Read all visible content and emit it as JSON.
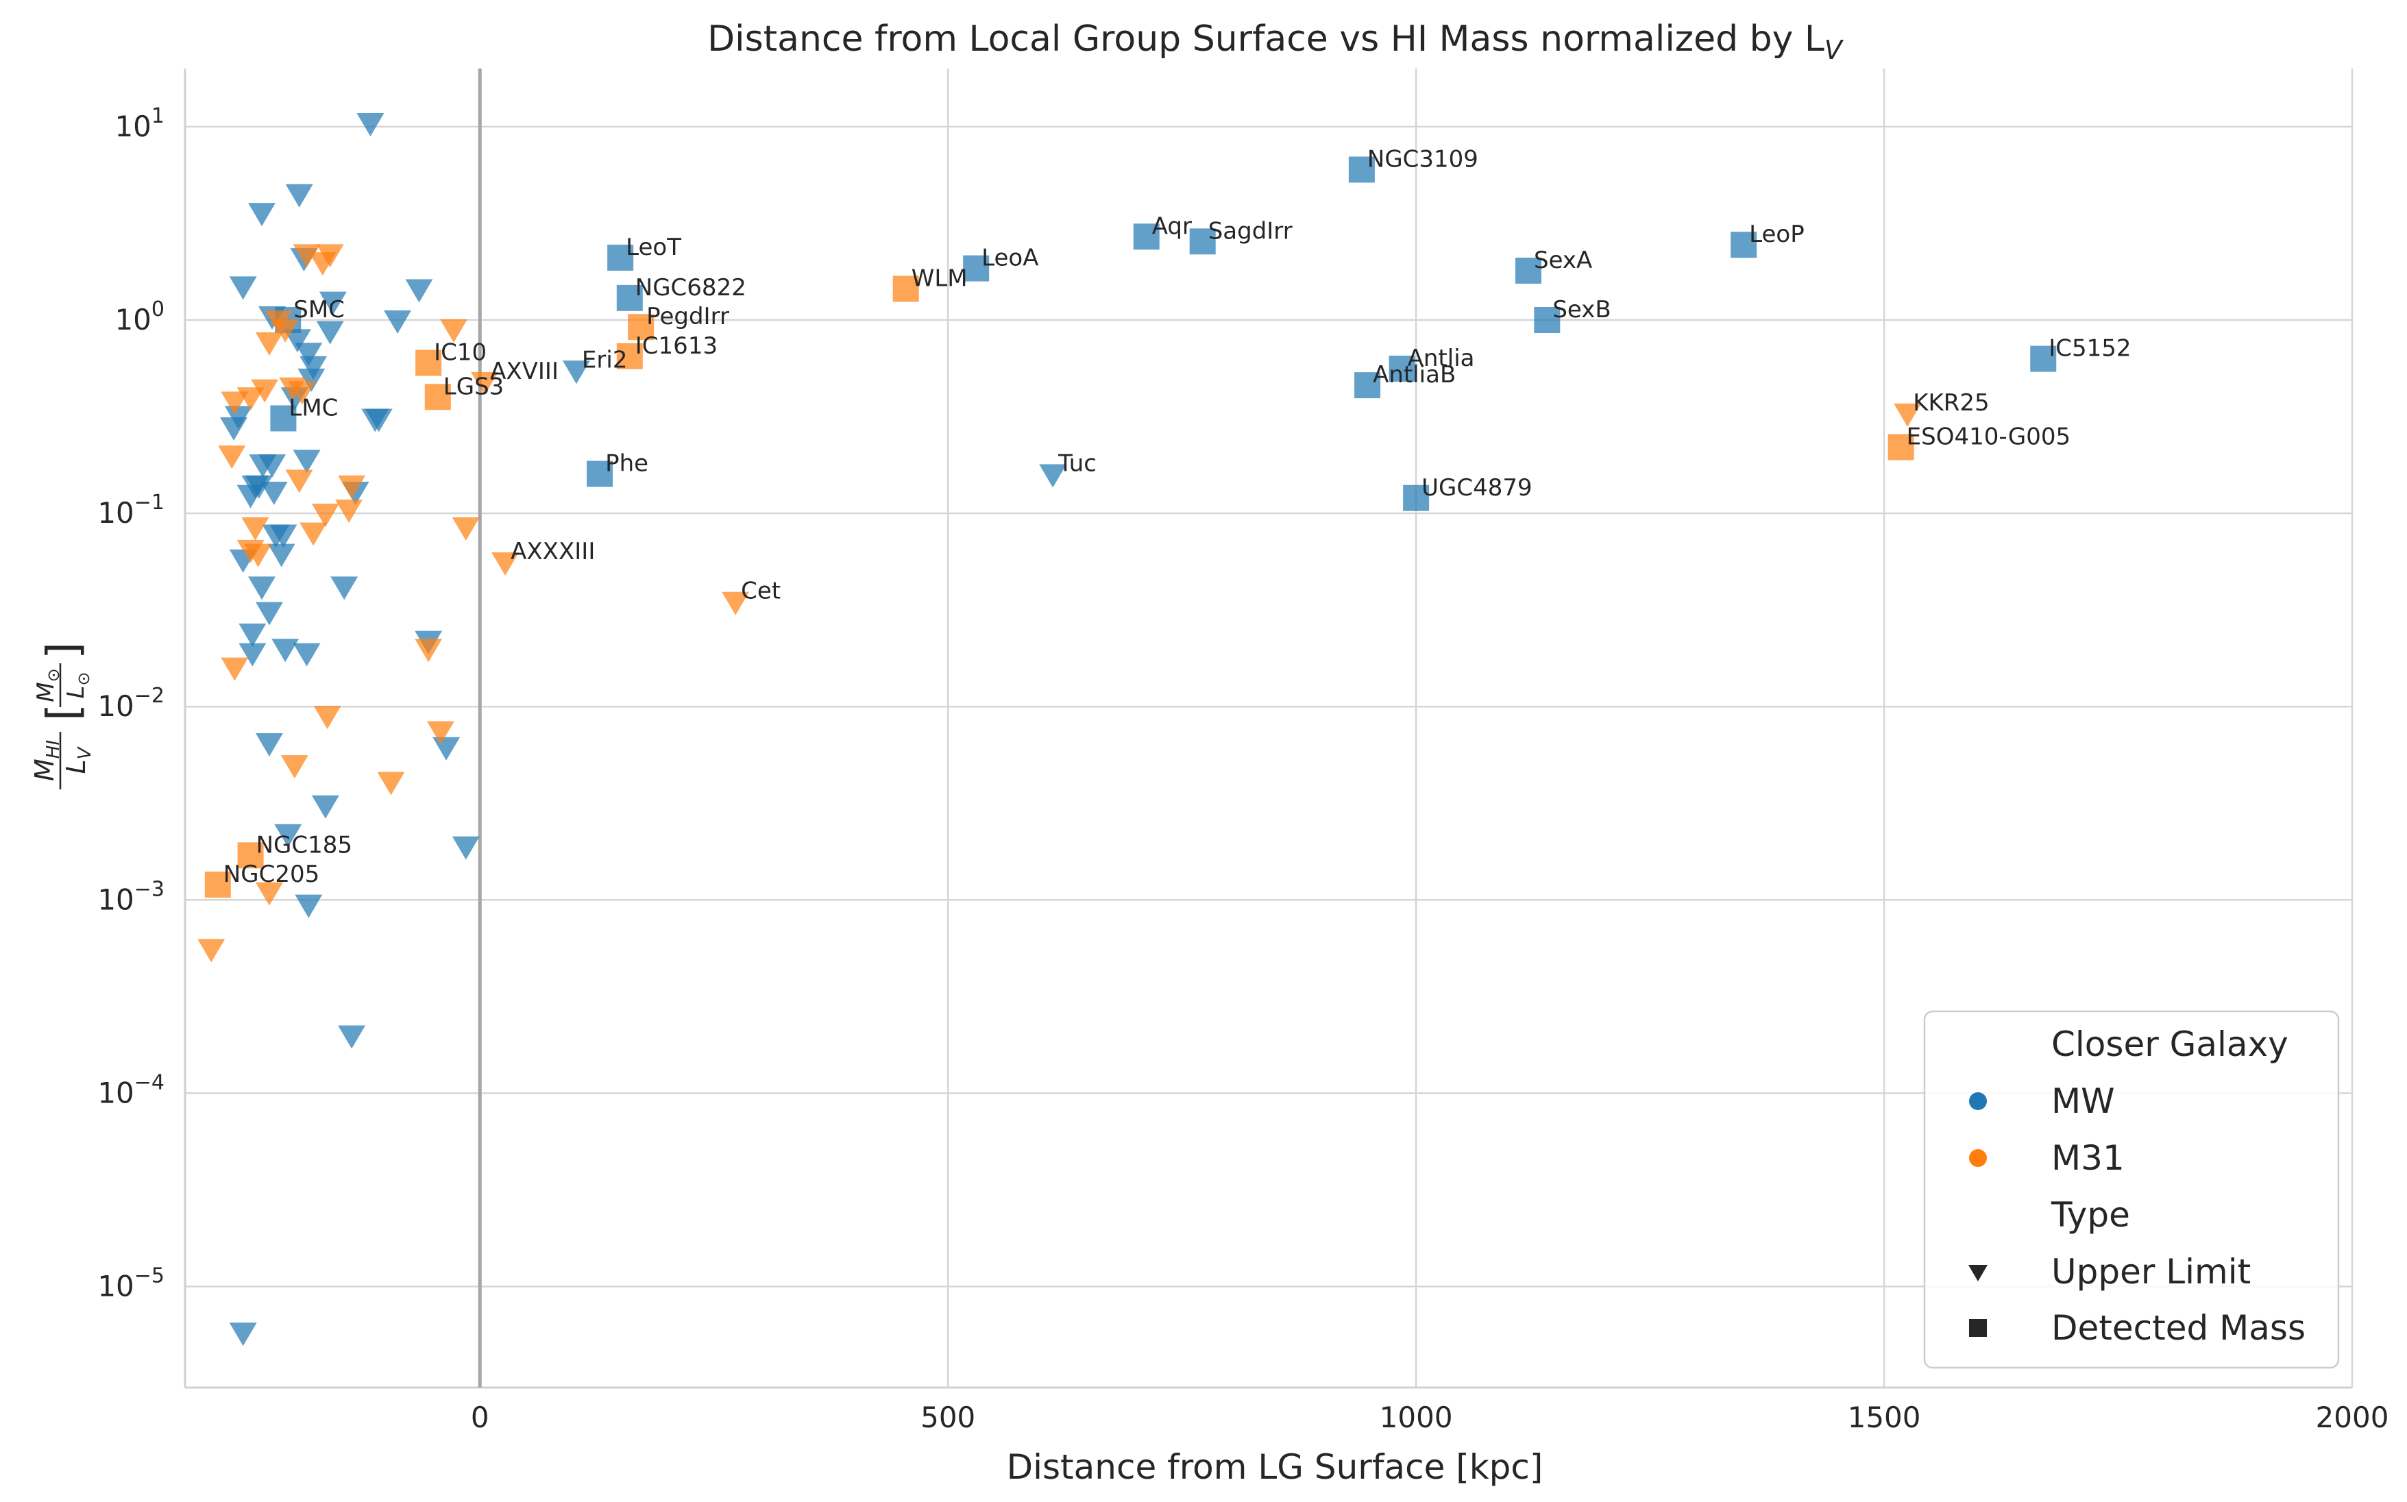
{
  "chart_data": {
    "type": "scatter",
    "title": "Distance from Local Group Surface vs HI Mass normalized by L",
    "title_subscript": "V",
    "xlabel": "Distance from LG Surface [kpc]",
    "ylabel": "M_HI / L_V [M_sun / L_sun]",
    "xlim": [
      -315,
      2000
    ],
    "ylim": [
      3e-06,
      20
    ],
    "yscale": "log",
    "x_ticks": [
      0,
      500,
      1000,
      1500,
      2000
    ],
    "x_tick_labels": [
      "0",
      "500",
      "1000",
      "1500",
      "2000"
    ],
    "y_tick_exponents": [
      1,
      0,
      -1,
      -2,
      -3,
      -4,
      -5
    ],
    "grid": true,
    "reference_line_x": 0,
    "legend_placement": "lower-right",
    "legend": {
      "hue_title": "Closer Galaxy",
      "hue_entries": [
        {
          "label": "MW",
          "color": "#1f77b4"
        },
        {
          "label": "M31",
          "color": "#ff7f0e"
        }
      ],
      "style_title": "Type",
      "style_entries": [
        {
          "label": "Upper Limit",
          "marker": "triangle-down"
        },
        {
          "label": "Detected Mass",
          "marker": "square"
        }
      ]
    },
    "colors": {
      "MW": "#1f77b4",
      "M31": "#ff7f0e"
    },
    "points": [
      {
        "x": 150,
        "y": 2.1,
        "host": "MW",
        "type": "detected",
        "label": "LeoT"
      },
      {
        "x": 160,
        "y": 1.3,
        "host": "MW",
        "type": "detected",
        "label": "NGC6822"
      },
      {
        "x": 128,
        "y": 0.16,
        "host": "MW",
        "type": "detected",
        "label": "Phe"
      },
      {
        "x": 530,
        "y": 1.85,
        "host": "MW",
        "type": "detected",
        "label": "LeoA"
      },
      {
        "x": 712,
        "y": 2.7,
        "host": "MW",
        "type": "detected",
        "label": "Aqr"
      },
      {
        "x": 772,
        "y": 2.55,
        "host": "MW",
        "type": "detected",
        "label": "SagdIrr"
      },
      {
        "x": 942,
        "y": 6.0,
        "host": "MW",
        "type": "detected",
        "label": "NGC3109"
      },
      {
        "x": 985,
        "y": 0.56,
        "host": "MW",
        "type": "detected",
        "label": "Antlia"
      },
      {
        "x": 948,
        "y": 0.46,
        "host": "MW",
        "type": "detected",
        "label": "AntliaB"
      },
      {
        "x": 1000,
        "y": 0.12,
        "host": "MW",
        "type": "detected",
        "label": "UGC4879"
      },
      {
        "x": 1120,
        "y": 1.8,
        "host": "MW",
        "type": "detected",
        "label": "SexA"
      },
      {
        "x": 1140,
        "y": 1.0,
        "host": "MW",
        "type": "detected",
        "label": "SexB"
      },
      {
        "x": 1350,
        "y": 2.45,
        "host": "MW",
        "type": "detected",
        "label": "LeoP"
      },
      {
        "x": 1670,
        "y": 0.63,
        "host": "MW",
        "type": "detected",
        "label": "IC5152"
      },
      {
        "x": -210,
        "y": 0.31,
        "host": "MW",
        "type": "detected",
        "label": "LMC"
      },
      {
        "x": -205,
        "y": 1.0,
        "host": "MW",
        "type": "detected",
        "label": "SMC"
      },
      {
        "x": -55,
        "y": 0.6,
        "host": "M31",
        "type": "detected",
        "label": "IC10"
      },
      {
        "x": -45,
        "y": 0.4,
        "host": "M31",
        "type": "detected",
        "label": "LGS3"
      },
      {
        "x": 172,
        "y": 0.92,
        "host": "M31",
        "type": "detected",
        "label": "PegdIrr"
      },
      {
        "x": 160,
        "y": 0.65,
        "host": "M31",
        "type": "detected",
        "label": "IC1613"
      },
      {
        "x": 455,
        "y": 1.45,
        "host": "M31",
        "type": "detected",
        "label": "WLM"
      },
      {
        "x": 1518,
        "y": 0.22,
        "host": "M31",
        "type": "detected",
        "label": "ESO410-G005"
      },
      {
        "x": -245,
        "y": 0.0017,
        "host": "M31",
        "type": "detected",
        "label": "NGC185"
      },
      {
        "x": -280,
        "y": 0.0012,
        "host": "M31",
        "type": "detected",
        "label": "NGC205"
      },
      {
        "x": 103,
        "y": 0.55,
        "host": "MW",
        "type": "upper",
        "label": "Eri2"
      },
      {
        "x": 612,
        "y": 0.16,
        "host": "MW",
        "type": "upper",
        "label": "Tuc"
      },
      {
        "x": 5,
        "y": 0.48,
        "host": "M31",
        "type": "upper",
        "label": "AXVIII"
      },
      {
        "x": 27,
        "y": 0.056,
        "host": "M31",
        "type": "upper",
        "label": "AXXXIII"
      },
      {
        "x": 273,
        "y": 0.035,
        "host": "M31",
        "type": "upper",
        "label": "Cet"
      },
      {
        "x": 1525,
        "y": 0.33,
        "host": "M31",
        "type": "upper",
        "label": "KKR25"
      },
      {
        "x": -117,
        "y": 10.5,
        "host": "MW",
        "type": "upper",
        "label": ""
      },
      {
        "x": -193,
        "y": 4.5,
        "host": "MW",
        "type": "upper",
        "label": ""
      },
      {
        "x": -233,
        "y": 3.6,
        "host": "MW",
        "type": "upper",
        "label": ""
      },
      {
        "x": -188,
        "y": 2.1,
        "host": "MW",
        "type": "upper",
        "label": ""
      },
      {
        "x": -253,
        "y": 1.5,
        "host": "MW",
        "type": "upper",
        "label": ""
      },
      {
        "x": -65,
        "y": 1.45,
        "host": "MW",
        "type": "upper",
        "label": ""
      },
      {
        "x": -157,
        "y": 1.25,
        "host": "MW",
        "type": "upper",
        "label": ""
      },
      {
        "x": -222,
        "y": 1.05,
        "host": "MW",
        "type": "upper",
        "label": ""
      },
      {
        "x": -88,
        "y": 1.0,
        "host": "MW",
        "type": "upper",
        "label": ""
      },
      {
        "x": -160,
        "y": 0.88,
        "host": "MW",
        "type": "upper",
        "label": ""
      },
      {
        "x": -195,
        "y": 0.8,
        "host": "MW",
        "type": "upper",
        "label": ""
      },
      {
        "x": -183,
        "y": 0.68,
        "host": "MW",
        "type": "upper",
        "label": ""
      },
      {
        "x": -178,
        "y": 0.58,
        "host": "MW",
        "type": "upper",
        "label": ""
      },
      {
        "x": -180,
        "y": 0.5,
        "host": "MW",
        "type": "upper",
        "label": ""
      },
      {
        "x": -198,
        "y": 0.4,
        "host": "MW",
        "type": "upper",
        "label": ""
      },
      {
        "x": -258,
        "y": 0.32,
        "host": "MW",
        "type": "upper",
        "label": ""
      },
      {
        "x": -263,
        "y": 0.28,
        "host": "MW",
        "type": "upper",
        "label": ""
      },
      {
        "x": -112,
        "y": 0.31,
        "host": "MW",
        "type": "upper",
        "label": ""
      },
      {
        "x": -108,
        "y": 0.31,
        "host": "MW",
        "type": "upper",
        "label": ""
      },
      {
        "x": -232,
        "y": 0.18,
        "host": "MW",
        "type": "upper",
        "label": ""
      },
      {
        "x": -222,
        "y": 0.18,
        "host": "MW",
        "type": "upper",
        "label": ""
      },
      {
        "x": -185,
        "y": 0.19,
        "host": "MW",
        "type": "upper",
        "label": ""
      },
      {
        "x": -240,
        "y": 0.14,
        "host": "MW",
        "type": "upper",
        "label": ""
      },
      {
        "x": -236,
        "y": 0.14,
        "host": "MW",
        "type": "upper",
        "label": ""
      },
      {
        "x": -245,
        "y": 0.125,
        "host": "MW",
        "type": "upper",
        "label": ""
      },
      {
        "x": -220,
        "y": 0.13,
        "host": "MW",
        "type": "upper",
        "label": ""
      },
      {
        "x": -133,
        "y": 0.13,
        "host": "MW",
        "type": "upper",
        "label": ""
      },
      {
        "x": -218,
        "y": 0.078,
        "host": "MW",
        "type": "upper",
        "label": ""
      },
      {
        "x": -210,
        "y": 0.078,
        "host": "MW",
        "type": "upper",
        "label": ""
      },
      {
        "x": -212,
        "y": 0.062,
        "host": "MW",
        "type": "upper",
        "label": ""
      },
      {
        "x": -253,
        "y": 0.058,
        "host": "MW",
        "type": "upper",
        "label": ""
      },
      {
        "x": -233,
        "y": 0.042,
        "host": "MW",
        "type": "upper",
        "label": ""
      },
      {
        "x": -145,
        "y": 0.042,
        "host": "MW",
        "type": "upper",
        "label": ""
      },
      {
        "x": -225,
        "y": 0.031,
        "host": "MW",
        "type": "upper",
        "label": ""
      },
      {
        "x": -243,
        "y": 0.024,
        "host": "MW",
        "type": "upper",
        "label": ""
      },
      {
        "x": -243,
        "y": 0.019,
        "host": "MW",
        "type": "upper",
        "label": ""
      },
      {
        "x": -208,
        "y": 0.02,
        "host": "MW",
        "type": "upper",
        "label": ""
      },
      {
        "x": -185,
        "y": 0.019,
        "host": "MW",
        "type": "upper",
        "label": ""
      },
      {
        "x": -55,
        "y": 0.022,
        "host": "MW",
        "type": "upper",
        "label": ""
      },
      {
        "x": -225,
        "y": 0.0065,
        "host": "MW",
        "type": "upper",
        "label": ""
      },
      {
        "x": -36,
        "y": 0.0062,
        "host": "MW",
        "type": "upper",
        "label": ""
      },
      {
        "x": -165,
        "y": 0.0031,
        "host": "MW",
        "type": "upper",
        "label": ""
      },
      {
        "x": -205,
        "y": 0.0022,
        "host": "MW",
        "type": "upper",
        "label": ""
      },
      {
        "x": -15,
        "y": 0.0019,
        "host": "MW",
        "type": "upper",
        "label": ""
      },
      {
        "x": -183,
        "y": 0.00095,
        "host": "MW",
        "type": "upper",
        "label": ""
      },
      {
        "x": -137,
        "y": 0.0002,
        "host": "MW",
        "type": "upper",
        "label": ""
      },
      {
        "x": -253,
        "y": 5.8e-06,
        "host": "MW",
        "type": "upper",
        "label": ""
      },
      {
        "x": -185,
        "y": 2.2,
        "host": "M31",
        "type": "upper",
        "label": ""
      },
      {
        "x": -160,
        "y": 2.2,
        "host": "M31",
        "type": "upper",
        "label": ""
      },
      {
        "x": -168,
        "y": 2.0,
        "host": "M31",
        "type": "upper",
        "label": ""
      },
      {
        "x": -215,
        "y": 1.0,
        "host": "M31",
        "type": "upper",
        "label": ""
      },
      {
        "x": -208,
        "y": 0.9,
        "host": "M31",
        "type": "upper",
        "label": ""
      },
      {
        "x": -28,
        "y": 0.9,
        "host": "M31",
        "type": "upper",
        "label": ""
      },
      {
        "x": -225,
        "y": 0.77,
        "host": "M31",
        "type": "upper",
        "label": ""
      },
      {
        "x": -200,
        "y": 0.45,
        "host": "M31",
        "type": "upper",
        "label": ""
      },
      {
        "x": -230,
        "y": 0.44,
        "host": "M31",
        "type": "upper",
        "label": ""
      },
      {
        "x": -190,
        "y": 0.43,
        "host": "M31",
        "type": "upper",
        "label": ""
      },
      {
        "x": -262,
        "y": 0.38,
        "host": "M31",
        "type": "upper",
        "label": ""
      },
      {
        "x": -245,
        "y": 0.4,
        "host": "M31",
        "type": "upper",
        "label": ""
      },
      {
        "x": -265,
        "y": 0.2,
        "host": "M31",
        "type": "upper",
        "label": ""
      },
      {
        "x": -193,
        "y": 0.15,
        "host": "M31",
        "type": "upper",
        "label": ""
      },
      {
        "x": -137,
        "y": 0.14,
        "host": "M31",
        "type": "upper",
        "label": ""
      },
      {
        "x": -165,
        "y": 0.1,
        "host": "M31",
        "type": "upper",
        "label": ""
      },
      {
        "x": -140,
        "y": 0.105,
        "host": "M31",
        "type": "upper",
        "label": ""
      },
      {
        "x": -240,
        "y": 0.085,
        "host": "M31",
        "type": "upper",
        "label": ""
      },
      {
        "x": -15,
        "y": 0.085,
        "host": "M31",
        "type": "upper",
        "label": ""
      },
      {
        "x": -178,
        "y": 0.08,
        "host": "M31",
        "type": "upper",
        "label": ""
      },
      {
        "x": -245,
        "y": 0.065,
        "host": "M31",
        "type": "upper",
        "label": ""
      },
      {
        "x": -237,
        "y": 0.062,
        "host": "M31",
        "type": "upper",
        "label": ""
      },
      {
        "x": -262,
        "y": 0.016,
        "host": "M31",
        "type": "upper",
        "label": ""
      },
      {
        "x": -55,
        "y": 0.02,
        "host": "M31",
        "type": "upper",
        "label": ""
      },
      {
        "x": -163,
        "y": 0.009,
        "host": "M31",
        "type": "upper",
        "label": ""
      },
      {
        "x": -42,
        "y": 0.0075,
        "host": "M31",
        "type": "upper",
        "label": ""
      },
      {
        "x": -198,
        "y": 0.005,
        "host": "M31",
        "type": "upper",
        "label": ""
      },
      {
        "x": -95,
        "y": 0.0041,
        "host": "M31",
        "type": "upper",
        "label": ""
      },
      {
        "x": -225,
        "y": 0.0011,
        "host": "M31",
        "type": "upper",
        "label": ""
      },
      {
        "x": -287,
        "y": 0.00056,
        "host": "M31",
        "type": "upper",
        "label": ""
      }
    ]
  }
}
